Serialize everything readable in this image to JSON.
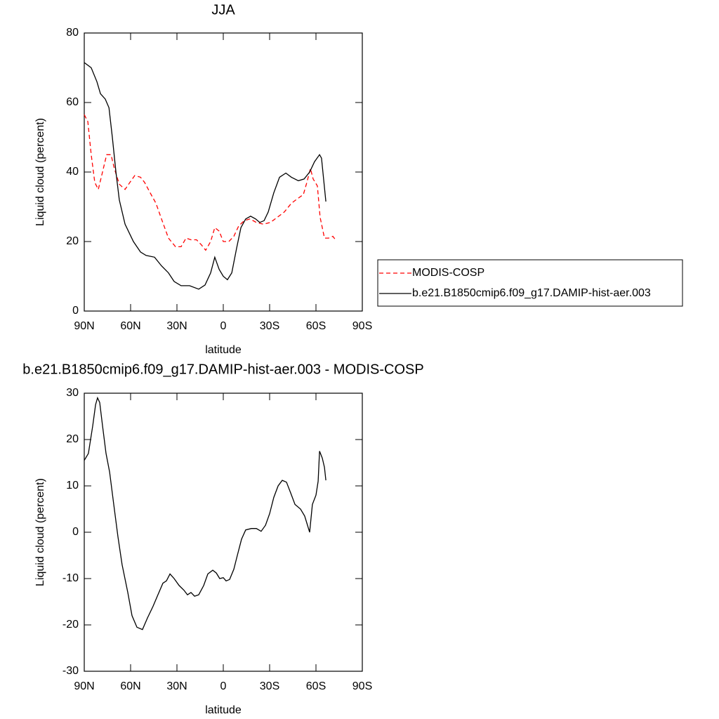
{
  "chart_data": [
    {
      "type": "line",
      "title": "JJA",
      "xlabel": "latitude",
      "ylabel": "Liquid cloud (percent)",
      "xlim": [
        90,
        -90
      ],
      "xticks": [
        {
          "value": 90,
          "label": "90N"
        },
        {
          "value": 60,
          "label": "60N"
        },
        {
          "value": 30,
          "label": "30N"
        },
        0,
        {
          "value": -30,
          "label": "30S"
        },
        {
          "value": -60,
          "label": "60S"
        },
        {
          "value": -90,
          "label": "90S"
        }
      ],
      "ylim": [
        0,
        80
      ],
      "yticks": [
        0,
        20,
        40,
        60,
        80
      ],
      "legend": "right",
      "series": [
        {
          "name": "MODIS-COSP",
          "color": "#ff0000",
          "dash": true,
          "x": [
            90,
            87.7,
            85.5,
            83.2,
            80.9,
            78.2,
            75.5,
            72.7,
            70.5,
            67.3,
            63.6,
            60.5,
            57.3,
            53.6,
            50.9,
            47.3,
            43.6,
            40,
            35.5,
            30.9,
            27.3,
            24.1,
            20.9,
            17.3,
            14.1,
            11.4,
            8.2,
            5.5,
            2.7,
            0,
            -3.6,
            -6.8,
            -10,
            -13.6,
            -17.3,
            -21.4,
            -25.9,
            -30.5,
            -35,
            -39.5,
            -44.1,
            -48.6,
            -51.8,
            -54.1,
            -56.4,
            -58.2,
            -60.9,
            -62.7,
            -65.5,
            -68.2,
            -70.9,
            -72.7
          ],
          "values": [
            56.5,
            54.5,
            45,
            37,
            35,
            40,
            45,
            45,
            41,
            36.5,
            35,
            37,
            39,
            38.5,
            37,
            34,
            31,
            26.5,
            21,
            18.5,
            18.5,
            21,
            20.5,
            20.5,
            19,
            17.5,
            20,
            24,
            23,
            20,
            20,
            21.5,
            24.5,
            26,
            26.5,
            25.5,
            25,
            25.5,
            27,
            28.5,
            31,
            32.5,
            33.5,
            37,
            41,
            38,
            36,
            27,
            21,
            21,
            21.5,
            20.5
          ]
        },
        {
          "name": "b.e21.B1850cmip6.f09_g17.DAMIP-hist-aer.003",
          "color": "#000000",
          "dash": false,
          "x": [
            90,
            85.5,
            81.8,
            79.5,
            76.4,
            74,
            71.8,
            69.5,
            67.3,
            63.6,
            58.2,
            53.6,
            50,
            44.5,
            40,
            35.5,
            31.8,
            27.3,
            21.8,
            15.9,
            11.8,
            8.2,
            5.5,
            2.7,
            0,
            -2.7,
            -5.5,
            -8.6,
            -11.4,
            -14.5,
            -17.7,
            -20.9,
            -23.6,
            -26.4,
            -29.1,
            -32.7,
            -36.4,
            -40.5,
            -44.1,
            -48.6,
            -52.3,
            -55.9,
            -59.1,
            -62.3,
            -63.6,
            -66.4
          ],
          "values": [
            71.5,
            70,
            66,
            62.5,
            61,
            58.5,
            50,
            40,
            32,
            25,
            20,
            17,
            16,
            15.5,
            13,
            11,
            8.5,
            7.3,
            7.3,
            6.3,
            7.5,
            11,
            15.5,
            12,
            10,
            9,
            11,
            18,
            24,
            26.5,
            27.3,
            26.5,
            25.5,
            26,
            28.5,
            34,
            38.5,
            39.7,
            38.5,
            37.5,
            38,
            40,
            43,
            45,
            44,
            31.5
          ]
        }
      ]
    },
    {
      "type": "line",
      "title": "b.e21.B1850cmip6.f09_g17.DAMIP-hist-aer.003 - MODIS-COSP",
      "xlabel": "latitude",
      "ylabel": "Liquid cloud (percent)",
      "xlim": [
        90,
        -90
      ],
      "xticks": [
        {
          "value": 90,
          "label": "90N"
        },
        {
          "value": 60,
          "label": "60N"
        },
        {
          "value": 30,
          "label": "30N"
        },
        0,
        {
          "value": -30,
          "label": "30S"
        },
        {
          "value": -60,
          "label": "60S"
        },
        {
          "value": -90,
          "label": "90S"
        }
      ],
      "ylim": [
        -30,
        30
      ],
      "yticks": [
        -30,
        -20,
        -10,
        0,
        10,
        20,
        30
      ],
      "color": "#000000",
      "x": [
        90,
        87.3,
        84.5,
        82.7,
        81.4,
        80,
        78.2,
        75.9,
        73.6,
        70.9,
        68.2,
        65.5,
        61.8,
        59.1,
        55.9,
        52.3,
        49.1,
        45.5,
        42.3,
        39.1,
        36.8,
        34.5,
        31.8,
        28.6,
        25.5,
        23.2,
        20.9,
        18.6,
        15.9,
        12.7,
        10,
        6.8,
        4.5,
        2.3,
        0,
        -1.8,
        -4.1,
        -6.8,
        -9.1,
        -11.8,
        -14.5,
        -18.2,
        -21.4,
        -24.5,
        -27.3,
        -30,
        -32.7,
        -35.5,
        -38.2,
        -40.9,
        -43.6,
        -46.4,
        -50,
        -52.7,
        -55.9,
        -57.7,
        -60,
        -61.4,
        -62.3,
        -64.1,
        -65.5,
        -66.4
      ],
      "values": [
        15.5,
        17,
        23,
        27.5,
        29,
        28,
        23,
        17,
        13,
        6,
        -1,
        -7,
        -13,
        -18,
        -20.5,
        -21,
        -18.5,
        -16,
        -13.5,
        -11,
        -10.5,
        -9,
        -10,
        -11.5,
        -12.5,
        -13.5,
        -13,
        -13.8,
        -13.5,
        -11.5,
        -9,
        -8.2,
        -8.8,
        -10,
        -9.8,
        -10.5,
        -10.2,
        -8,
        -5,
        -1.5,
        0.5,
        0.8,
        0.8,
        0.2,
        1.5,
        4,
        7.5,
        10,
        11.2,
        10.8,
        8.5,
        6,
        5,
        3.5,
        0,
        6,
        8,
        11,
        17.5,
        16,
        14,
        11.2
      ]
    }
  ]
}
